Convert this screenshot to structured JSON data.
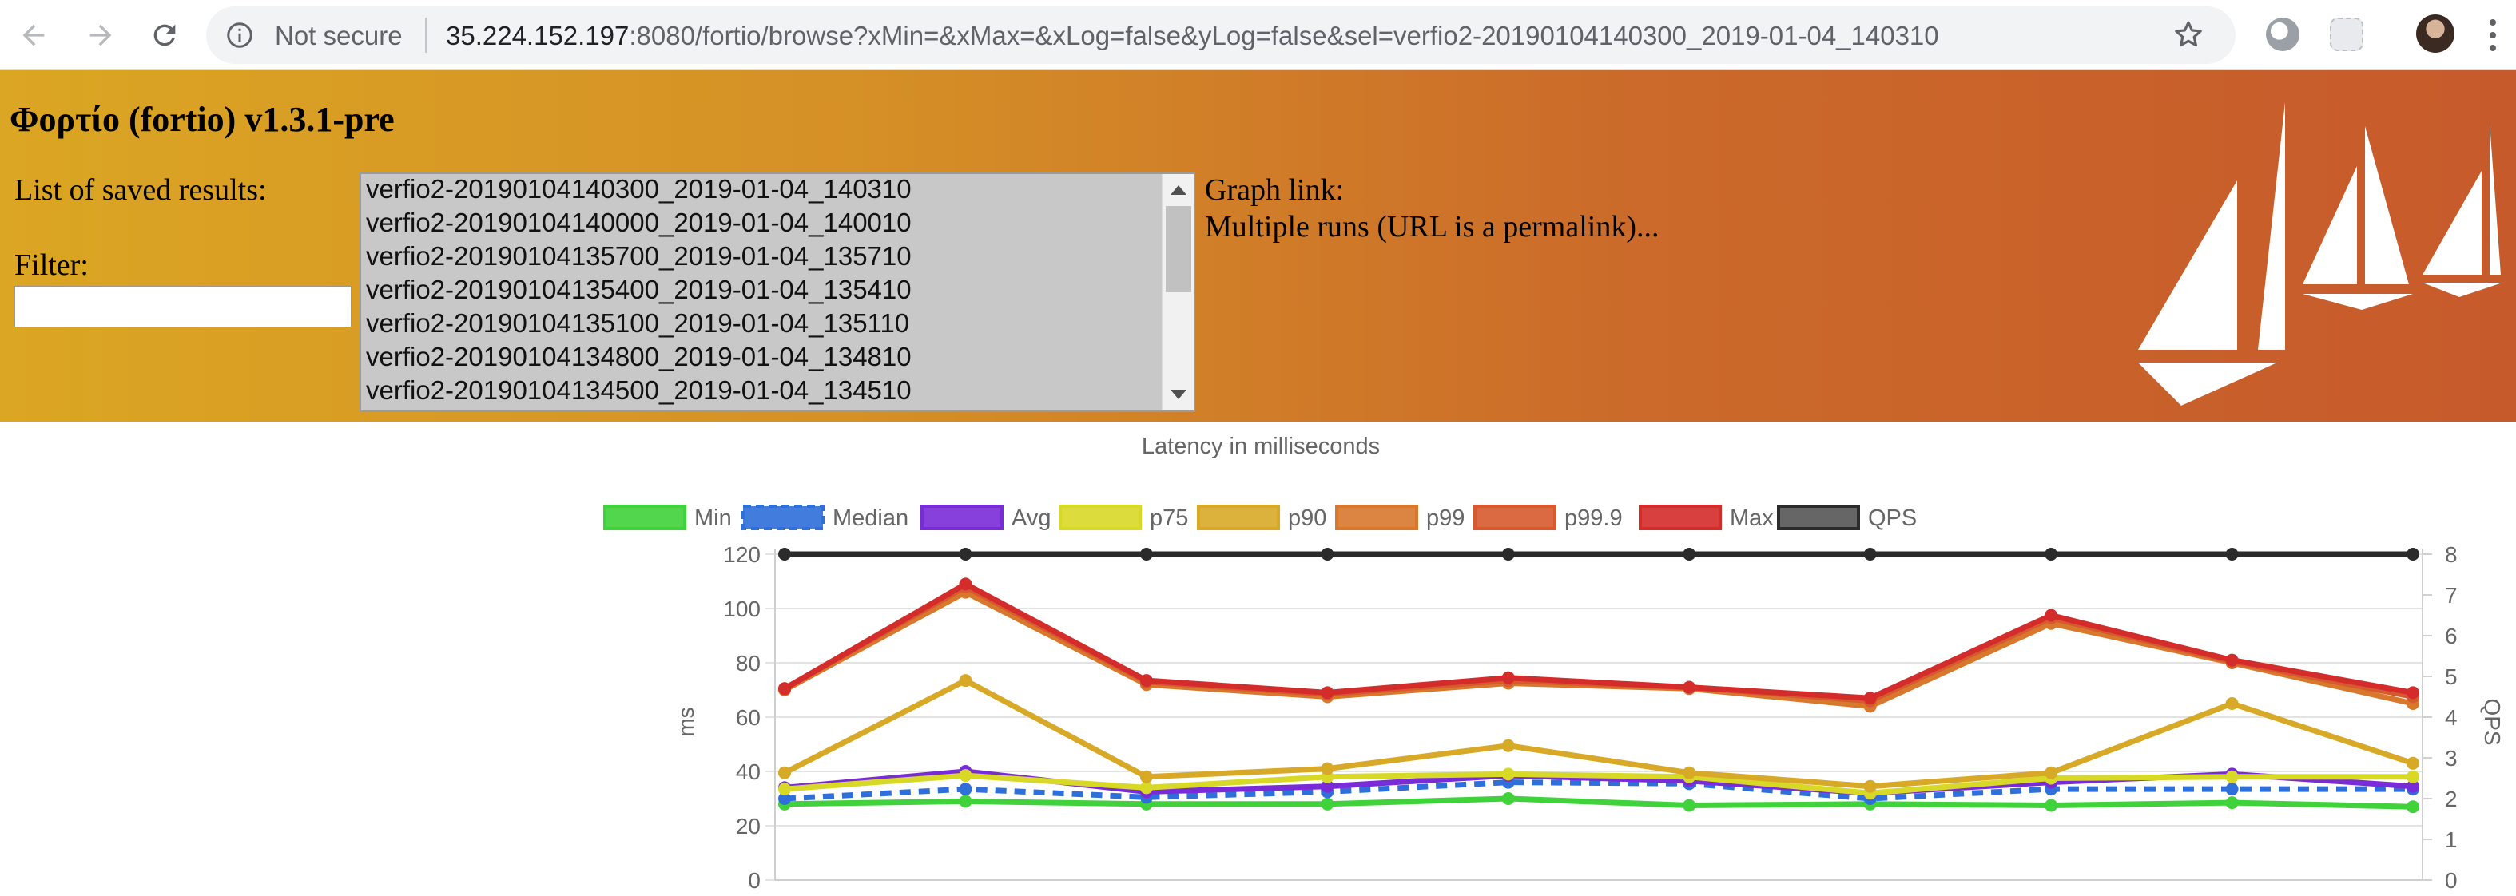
{
  "browser": {
    "security_label": "Not secure",
    "url_host": "35.224.152.197",
    "url_rest": ":8080/fortio/browse?xMin=&xMax=&xLog=false&yLog=false&sel=verfio2-20190104140300_2019-01-04_140310",
    "icons": [
      "back-arrow-icon",
      "forward-arrow-icon",
      "reload-icon",
      "info-icon",
      "star-icon",
      "menu-icon"
    ]
  },
  "header": {
    "title": "Φορτίο (fortio) v1.3.1-pre",
    "saved_results_label": "List of saved results:",
    "filter_label": "Filter:",
    "filter_value": "",
    "graph_link_label": "Graph link:",
    "multiple_runs_text": "Multiple runs (URL is a permalink)...",
    "saved_results": [
      "verfio2-20190104140300_2019-01-04_140310",
      "verfio2-20190104140000_2019-01-04_140010",
      "verfio2-20190104135700_2019-01-04_135710",
      "verfio2-20190104135400_2019-01-04_135410",
      "verfio2-20190104135100_2019-01-04_135110",
      "verfio2-20190104134800_2019-01-04_134810",
      "verfio2-20190104134500_2019-01-04_134510"
    ]
  },
  "chart_data": {
    "type": "line",
    "title": "Latency in milliseconds",
    "ylabel": "ms",
    "y2label": "QPS",
    "ylim": [
      0,
      120
    ],
    "y2lim": [
      0,
      8
    ],
    "yticks": [
      0,
      20,
      40,
      60,
      80,
      100,
      120
    ],
    "y2ticks": [
      0,
      1,
      2,
      3,
      4,
      5,
      6,
      7,
      8
    ],
    "legend_position": "top",
    "grid": true,
    "x": [
      1,
      2,
      3,
      4,
      5,
      6,
      7,
      8,
      9,
      10
    ],
    "series": [
      {
        "name": "Min",
        "color": "#3fd23a",
        "axis": "ms",
        "values": [
          28,
          29,
          28,
          28,
          30,
          27.5,
          28,
          27.5,
          28.5,
          27
        ]
      },
      {
        "name": "Median",
        "color": "#2e6fd9",
        "axis": "ms",
        "dashed": true,
        "values": [
          30,
          33.5,
          30.5,
          32.5,
          36,
          35.5,
          30,
          33.5,
          33.5,
          33.5
        ]
      },
      {
        "name": "Avg",
        "color": "#7a2bd8",
        "axis": "ms",
        "values": [
          34,
          40,
          32.5,
          34.5,
          38.5,
          36.5,
          32,
          36,
          39,
          34.5
        ]
      },
      {
        "name": "p75",
        "color": "#d8d827",
        "axis": "ms",
        "values": [
          33.5,
          38.5,
          34,
          38,
          39,
          38,
          32,
          37.5,
          38,
          38
        ]
      },
      {
        "name": "p90",
        "color": "#d8a927",
        "axis": "ms",
        "values": [
          39.5,
          73.5,
          38,
          41,
          49.5,
          39.5,
          34.5,
          39.5,
          65,
          43
        ]
      },
      {
        "name": "p99",
        "color": "#d8782d",
        "axis": "ms",
        "values": [
          70,
          106,
          72,
          67.5,
          72.5,
          70.5,
          64,
          94.5,
          80,
          65
        ]
      },
      {
        "name": "p99.9",
        "color": "#d75a2e",
        "axis": "ms",
        "values": [
          70.5,
          108,
          73,
          68.5,
          73.5,
          71,
          66,
          96.5,
          80.5,
          67.5
        ]
      },
      {
        "name": "Max",
        "color": "#d42b2b",
        "axis": "ms",
        "values": [
          70.5,
          109,
          73.5,
          69,
          74.5,
          71,
          67,
          97.5,
          81,
          69
        ]
      },
      {
        "name": "QPS",
        "color": "#2b2b2b",
        "axis": "QPS",
        "values": [
          8,
          8,
          8,
          8,
          8,
          8,
          8,
          8,
          8,
          8
        ]
      }
    ]
  }
}
